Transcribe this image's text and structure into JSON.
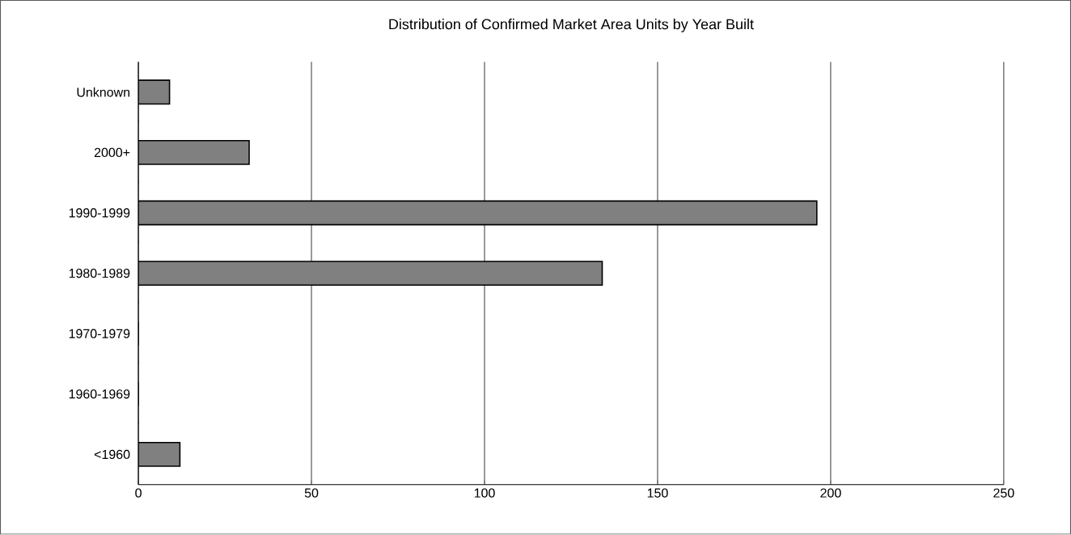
{
  "chart_data": {
    "type": "bar",
    "orientation": "horizontal",
    "title": "Distribution of Confirmed Market Area Units by Year Built",
    "categories": [
      "Unknown",
      "2000+",
      "1990-1999",
      "1980-1989",
      "1970-1979",
      "1960-1969",
      "<1960"
    ],
    "values": [
      9,
      32,
      196,
      134,
      0,
      0,
      12
    ],
    "color": "#808080",
    "xlim": [
      0,
      250
    ],
    "xticks": [
      0,
      50,
      100,
      150,
      200,
      250
    ],
    "grid": "x"
  }
}
